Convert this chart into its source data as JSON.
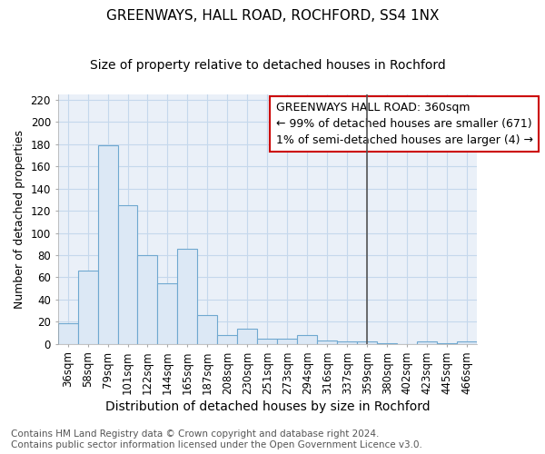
{
  "title": "GREENWAYS, HALL ROAD, ROCHFORD, SS4 1NX",
  "subtitle": "Size of property relative to detached houses in Rochford",
  "xlabel": "Distribution of detached houses by size in Rochford",
  "ylabel": "Number of detached properties",
  "categories": [
    "36sqm",
    "58sqm",
    "79sqm",
    "101sqm",
    "122sqm",
    "144sqm",
    "165sqm",
    "187sqm",
    "208sqm",
    "230sqm",
    "251sqm",
    "273sqm",
    "294sqm",
    "316sqm",
    "337sqm",
    "359sqm",
    "380sqm",
    "402sqm",
    "423sqm",
    "445sqm",
    "466sqm"
  ],
  "values": [
    19,
    66,
    179,
    125,
    80,
    55,
    86,
    26,
    8,
    14,
    5,
    5,
    8,
    3,
    2,
    2,
    1,
    0,
    2,
    1,
    2
  ],
  "bar_color": "#dce8f5",
  "bar_edgecolor": "#6fa8d0",
  "vline_x_index": 15,
  "vline_color": "#555555",
  "annotation_text": "GREENWAYS HALL ROAD: 360sqm\n← 99% of detached houses are smaller (671)\n1% of semi-detached houses are larger (4) →",
  "annotation_box_color": "#cc0000",
  "ylim": [
    0,
    225
  ],
  "yticks": [
    0,
    20,
    40,
    60,
    80,
    100,
    120,
    140,
    160,
    180,
    200,
    220
  ],
  "grid_color": "#c5d8ec",
  "background_color": "#eaf0f8",
  "footer": "Contains HM Land Registry data © Crown copyright and database right 2024.\nContains public sector information licensed under the Open Government Licence v3.0.",
  "title_fontsize": 11,
  "subtitle_fontsize": 10,
  "xlabel_fontsize": 10,
  "ylabel_fontsize": 9,
  "tick_fontsize": 8.5,
  "annotation_fontsize": 9,
  "footer_fontsize": 7.5
}
